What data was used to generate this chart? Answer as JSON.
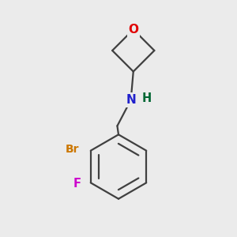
{
  "background_color": "#ebebeb",
  "atom_colors": {
    "O": "#e00000",
    "N": "#2020cc",
    "H": "#006633",
    "Br": "#cc7700",
    "F": "#cc00cc",
    "C": "#404040"
  },
  "bond_color": "#404040",
  "bond_width": 1.6,
  "font_size": 10.5
}
